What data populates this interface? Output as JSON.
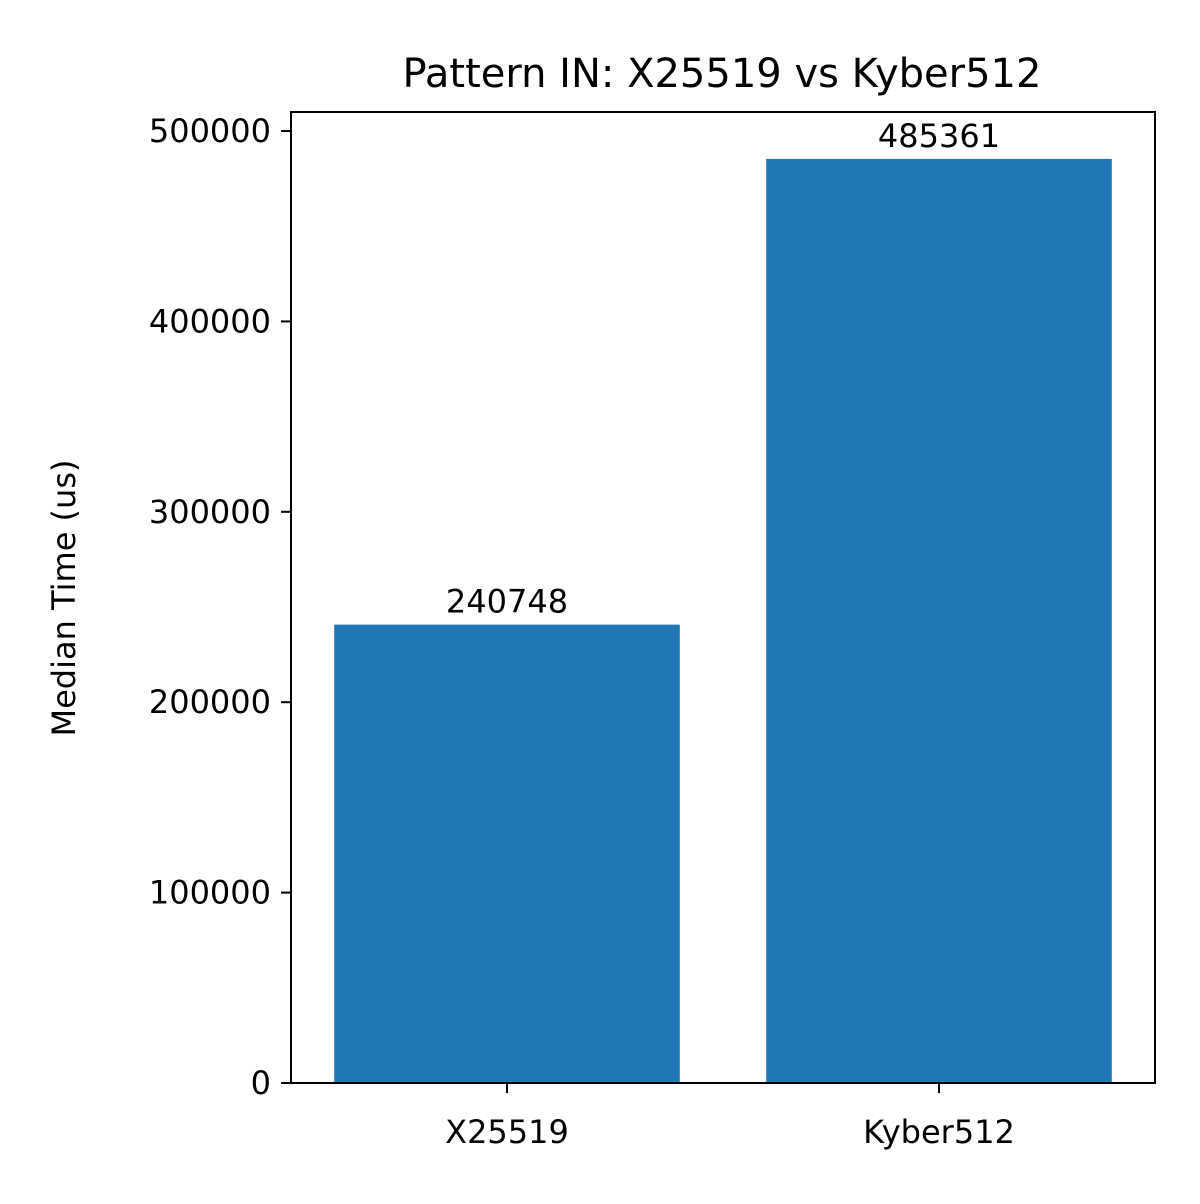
{
  "chart_data": {
    "type": "bar",
    "title": "Pattern IN: X25519 vs Kyber512",
    "xlabel": "",
    "ylabel": "Median Time (us)",
    "categories": [
      "X25519",
      "Kyber512"
    ],
    "values": [
      240748,
      485361
    ],
    "data_labels": [
      "240748",
      "485361"
    ],
    "ylim": [
      0,
      510000
    ],
    "yticks": [
      0,
      100000,
      200000,
      300000,
      400000,
      500000
    ],
    "ytick_labels": [
      "0",
      "100000",
      "200000",
      "300000",
      "400000",
      "500000"
    ],
    "grid": false,
    "legend": "none",
    "bar_color": "#1f77b4"
  }
}
